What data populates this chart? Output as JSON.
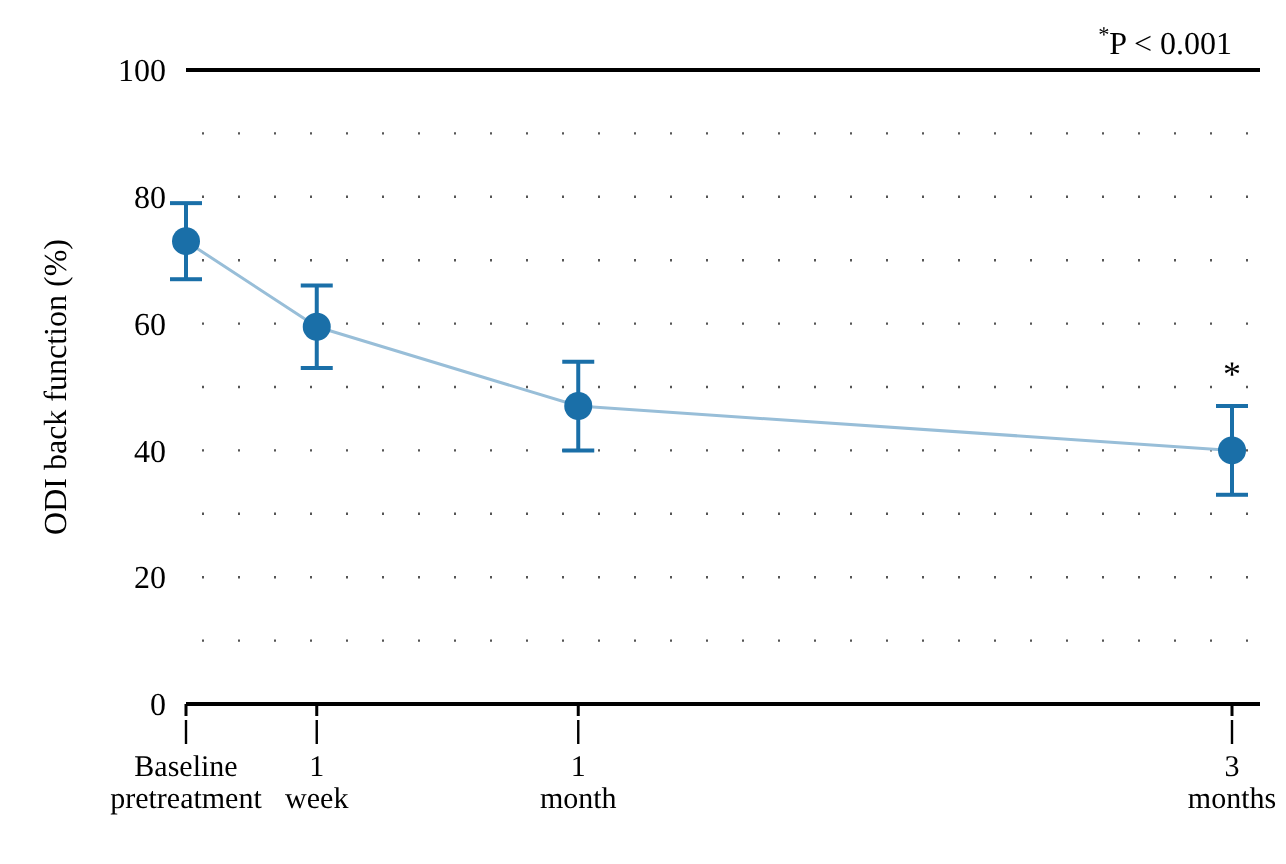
{
  "chart_data": {
    "type": "line",
    "ylabel": "ODI back function (%)",
    "categories": [
      "Baseline pretreatment",
      "1 week",
      null,
      "1 month",
      null,
      null,
      null,
      null,
      "3 months"
    ],
    "ylim": [
      0,
      100
    ],
    "yticks": [
      0,
      {
        "value": 10,
        "label": null
      },
      20,
      {
        "value": 30,
        "label": null
      },
      40,
      {
        "value": 50,
        "label": null
      },
      60,
      {
        "value": 70,
        "label": null
      },
      80,
      {
        "value": 90,
        "label": null
      },
      100
    ],
    "grid": "y",
    "marker": "circle",
    "line_style": "solid",
    "series": [
      {
        "color": "#1a6fa8",
        "values": [
          73,
          59.5,
          null,
          47,
          null,
          null,
          null,
          null,
          40
        ],
        "errors": [
          [
            67,
            79
          ],
          [
            53,
            66
          ],
          null,
          [
            40,
            54
          ],
          null,
          null,
          null,
          null,
          [
            33,
            47
          ]
        ]
      }
    ],
    "annotations": [
      "*",
      "$^{*}$P < 0.001"
    ]
  }
}
